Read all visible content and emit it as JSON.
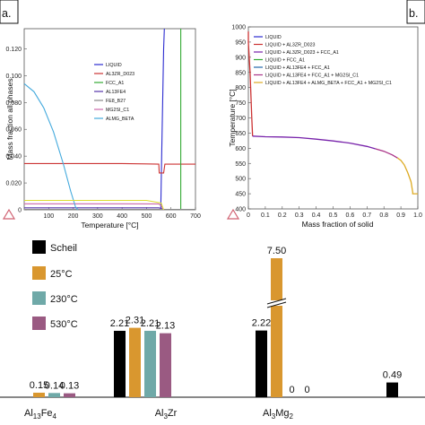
{
  "chart_data": [
    {
      "type": "line",
      "panel_label": "a.",
      "xlabel": "Temperature [°C]",
      "ylabel": "Mass fraction all phases",
      "xlim": [
        0,
        700
      ],
      "ylim": [
        0,
        0.135
      ],
      "x_ticks": [
        "100",
        "200",
        "300",
        "400",
        "500",
        "600",
        "700"
      ],
      "y_ticks": [
        "0",
        "0.020",
        "0.040",
        "0.060",
        "0.080",
        "0.100",
        "0.120"
      ],
      "legend_position": "right",
      "series": [
        {
          "name": "LIQUID",
          "color": "#2b2bd0",
          "x": [
            558,
            562,
            566,
            570,
            573
          ],
          "y": [
            0.0,
            0.04,
            0.08,
            0.12,
            0.135
          ]
        },
        {
          "name": "AL3ZR_D023",
          "color": "#cc3333",
          "x": [
            0,
            100,
            200,
            300,
            400,
            500,
            550,
            552,
            570,
            575,
            600,
            640,
            700
          ],
          "y": [
            0.0345,
            0.0345,
            0.0345,
            0.0345,
            0.0345,
            0.0342,
            0.034,
            0.0275,
            0.0275,
            0.034,
            0.034,
            0.034,
            0.034
          ]
        },
        {
          "name": "FCC_A1",
          "color": "#33aa33",
          "x": [
            640,
            640
          ],
          "y": [
            0,
            0.135
          ]
        },
        {
          "name": "AL13FE4",
          "color": "#5533aa",
          "x": [
            0,
            200,
            400,
            550,
            560,
            570
          ],
          "y": [
            0.0015,
            0.0015,
            0.0015,
            0.0015,
            0.001,
            0.0
          ]
        },
        {
          "name": "FE8_B27",
          "color": "#888888",
          "x": [
            0,
            700
          ],
          "y": [
            0.0003,
            0.0003
          ]
        },
        {
          "name": "MG2SI_C1",
          "color": "#cc66aa",
          "x": [
            0,
            200,
            400,
            550,
            560,
            570
          ],
          "y": [
            0.0045,
            0.0045,
            0.0045,
            0.0044,
            0.003,
            0.0
          ]
        },
        {
          "name": "ALMG_BETA",
          "color": "#44aadd",
          "x": [
            0,
            40,
            80,
            120,
            160,
            190,
            210,
            220
          ],
          "y": [
            0.094,
            0.088,
            0.076,
            0.058,
            0.034,
            0.014,
            0.002,
            0.0
          ]
        },
        {
          "name": "",
          "color": "#dddd33",
          "x": [
            0,
            100,
            200,
            300,
            400,
            500,
            560,
            570
          ],
          "y": [
            0.007,
            0.007,
            0.007,
            0.007,
            0.007,
            0.007,
            0.005,
            0.0
          ]
        }
      ]
    },
    {
      "type": "line",
      "panel_label": "b.",
      "xlabel": "Mass fraction of solid",
      "ylabel": "Temperature [°C]",
      "xlim": [
        0,
        1.0
      ],
      "ylim": [
        400,
        1000
      ],
      "x_ticks": [
        "0",
        "0.1",
        "0.2",
        "0.3",
        "0.4",
        "0.5",
        "0.6",
        "0.7",
        "0.8",
        "0.9",
        "1.0"
      ],
      "y_ticks": [
        "400",
        "450",
        "500",
        "550",
        "600",
        "650",
        "700",
        "750",
        "800",
        "850",
        "900",
        "950",
        "1000"
      ],
      "legend_position": "top",
      "series": [
        {
          "name": "LIQUID",
          "color": "#2b2bd0",
          "x": [],
          "y": []
        },
        {
          "name": "LIQUID + AL3ZR_D023",
          "color": "#cc3333",
          "x": [
            0,
            0.0,
            0.01,
            0.02,
            0.025
          ],
          "y": [
            985,
            950,
            850,
            700,
            640
          ]
        },
        {
          "name": "LIQUID + AL3ZR_D023 + FCC_A1",
          "color": "#7722aa",
          "x": [
            0.025,
            0.1,
            0.2,
            0.3,
            0.4,
            0.5,
            0.6,
            0.7,
            0.75
          ],
          "y": [
            640,
            638,
            637,
            635,
            630,
            624,
            617,
            606,
            598
          ]
        },
        {
          "name": "LIQUID + FCC_A1",
          "color": "#33aa33",
          "x": [],
          "y": []
        },
        {
          "name": "LIQUID + AL13FE4 + FCC_A1",
          "color": "#2266aa",
          "x": [],
          "y": []
        },
        {
          "name": "LIQUID + AL13FE4 + FCC_A1 + MG2SI_C1",
          "color": "#aa3388",
          "x": [
            0.75,
            0.8,
            0.85,
            0.88
          ],
          "y": [
            598,
            590,
            578,
            568
          ]
        },
        {
          "name": "LIQUID + AL13FE4 + ALMG_BETA + FCC_A1 + MG2SI_C1",
          "color": "#ddaa22",
          "x": [
            0.88,
            0.9,
            0.92,
            0.94,
            0.96,
            0.97,
            0.97,
            1.0
          ],
          "y": [
            568,
            560,
            545,
            520,
            490,
            455,
            450,
            450
          ]
        }
      ]
    },
    {
      "type": "bar",
      "categories": [
        "Al13Fe4",
        "Al3Zr",
        "Al3Mg2",
        ""
      ],
      "category_labels": [
        {
          "main": "Al",
          "sub1": "13",
          "mid": "Fe",
          "sub2": "4"
        },
        {
          "main": "Al",
          "sub1": "3",
          "mid": "Zr",
          "sub2": ""
        },
        {
          "main": "Al",
          "sub1": "3",
          "mid": "Mg",
          "sub2": "2"
        },
        {
          "main": "",
          "sub1": "",
          "mid": "",
          "sub2": ""
        }
      ],
      "legend_position": "left",
      "legend_labels": [
        "Scheil",
        "25°C",
        "230°C",
        "530°C"
      ],
      "axis_break": true,
      "series": [
        {
          "name": "Scheil",
          "color": "#000000",
          "values": [
            null,
            2.21,
            2.22,
            0.49
          ],
          "labels": [
            "",
            "2.21",
            "2.22",
            "0.49"
          ]
        },
        {
          "name": "25°C",
          "color": "#d9972f",
          "values": [
            0.15,
            2.31,
            7.5,
            null
          ],
          "labels": [
            "0.15",
            "2.31",
            "7.50",
            ""
          ]
        },
        {
          "name": "230°C",
          "color": "#6fa9a8",
          "values": [
            0.14,
            2.21,
            0,
            null
          ],
          "labels": [
            "0.14",
            "2.21",
            "0",
            ""
          ]
        },
        {
          "name": "530°C",
          "color": "#9a5a82",
          "values": [
            0.13,
            2.13,
            0,
            null
          ],
          "labels": [
            "0.13",
            "2.13",
            "0",
            ""
          ]
        }
      ]
    }
  ]
}
